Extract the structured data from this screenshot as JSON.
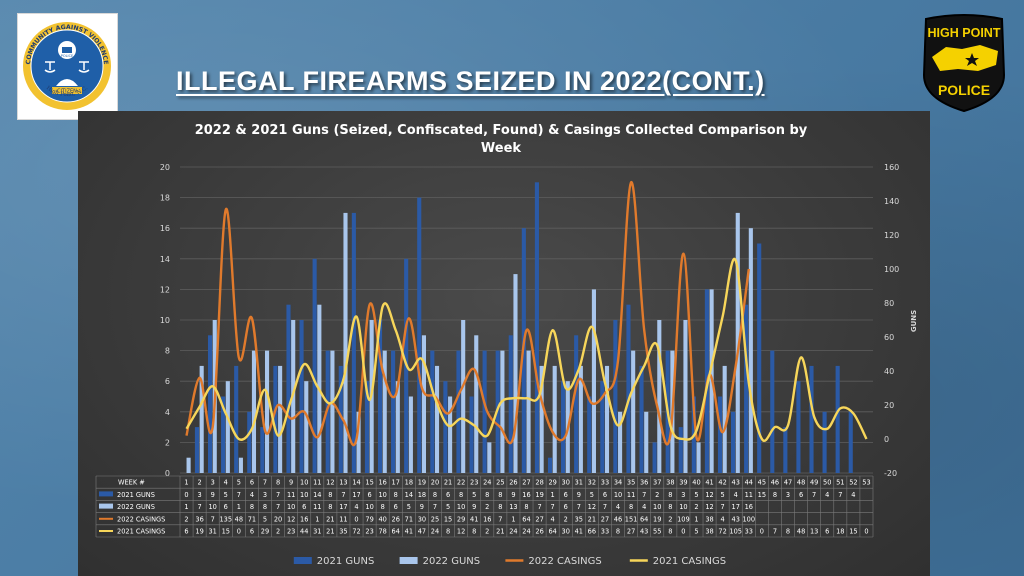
{
  "page": {
    "title": "ILLEGAL FIREARMS SEIZED IN 2022(CONT.)"
  },
  "logos": {
    "left": {
      "ring_top": "COMMUNITY AGAINST VIOLENCE",
      "ring_bottom": "High Point, N.C.",
      "ribbon": "CITIZEN",
      "center": "POLICE",
      "colors": {
        "ring": "#f2c230",
        "inner": "#1f5fa8"
      }
    },
    "right": {
      "line1": "HIGH POINT",
      "line2": "POLICE",
      "colors": {
        "badge": "#111111",
        "star_field": "#f5d100",
        "text": "#f5d100"
      }
    }
  },
  "chart_data": {
    "type": "bar",
    "title": "2022 & 2021 Guns (Seized, Confiscated, Found) & Casings Collected Comparison by Week",
    "ylabel_right": "GUNS",
    "ylim_left": [
      0,
      20
    ],
    "yticks_left": [
      0,
      2,
      4,
      6,
      8,
      10,
      12,
      14,
      16,
      18,
      20
    ],
    "ylim_right": [
      -20,
      160
    ],
    "yticks_right": [
      -20,
      0,
      20,
      40,
      60,
      80,
      100,
      120,
      140,
      160
    ],
    "grid": true,
    "legend_position": "bottom",
    "table_header_label": "WEEK #",
    "categories": [
      "1",
      "2",
      "3",
      "4",
      "5",
      "6",
      "7",
      "8",
      "9",
      "10",
      "11",
      "12",
      "13",
      "14",
      "15",
      "16",
      "17",
      "18",
      "19",
      "20",
      "21",
      "22",
      "23",
      "24",
      "25",
      "26",
      "27",
      "28",
      "29",
      "30",
      "31",
      "32",
      "33",
      "34",
      "35",
      "36",
      "37",
      "38",
      "39",
      "40",
      "41",
      "42",
      "43",
      "44",
      "45",
      "46",
      "47",
      "48",
      "49",
      "50",
      "51",
      "52",
      "53"
    ],
    "series": [
      {
        "name": "2021 GUNS",
        "type": "bar",
        "axis": "left",
        "color": "#2b5aa6",
        "values": [
          0,
          3,
          9,
          5,
          7,
          4,
          3,
          7,
          11,
          10,
          14,
          8,
          7,
          17,
          6,
          10,
          8,
          14,
          18,
          8,
          6,
          8,
          5,
          8,
          8,
          9,
          16,
          19,
          1,
          6,
          9,
          5,
          6,
          10,
          11,
          7,
          2,
          8,
          3,
          5,
          12,
          5,
          4,
          11,
          15,
          8,
          3,
          6,
          7,
          4,
          7,
          4,
          null
        ]
      },
      {
        "name": "2022 GUNS",
        "type": "bar",
        "axis": "left",
        "color": "#a9c6ec",
        "values": [
          1,
          7,
          10,
          6,
          1,
          8,
          8,
          7,
          10,
          6,
          11,
          8,
          17,
          4,
          10,
          8,
          6,
          5,
          9,
          7,
          5,
          10,
          9,
          2,
          8,
          13,
          8,
          7,
          7,
          6,
          7,
          12,
          7,
          4,
          8,
          4,
          10,
          8,
          10,
          2,
          12,
          7,
          17,
          16,
          null,
          null,
          null,
          null,
          null,
          null,
          null,
          null,
          null
        ]
      },
      {
        "name": "2022 CASINGS",
        "type": "line",
        "axis": "right",
        "color": "#e07a2c",
        "values": [
          2,
          36,
          7,
          135,
          48,
          71,
          5,
          20,
          12,
          16,
          1,
          21,
          11,
          0,
          79,
          40,
          26,
          71,
          30,
          25,
          15,
          29,
          41,
          16,
          7,
          1,
          64,
          27,
          4,
          2,
          35,
          21,
          27,
          46,
          151,
          64,
          19,
          2,
          109,
          1,
          38,
          4,
          43,
          100,
          null,
          null,
          null,
          null,
          null,
          null,
          null,
          null,
          null
        ]
      },
      {
        "name": "2021 CASINGS",
        "type": "line",
        "axis": "right",
        "color": "#f7d65a",
        "values": [
          6,
          19,
          31,
          15,
          0,
          6,
          29,
          2,
          23,
          44,
          31,
          21,
          35,
          72,
          23,
          78,
          64,
          41,
          47,
          24,
          8,
          12,
          8,
          2,
          21,
          24,
          24,
          26,
          64,
          30,
          41,
          66,
          33,
          8,
          27,
          43,
          55,
          8,
          0,
          5,
          38,
          72,
          105,
          33,
          0,
          7,
          8,
          48,
          13,
          6,
          18,
          15,
          0
        ]
      }
    ],
    "table_rows": [
      {
        "label": "2021 GUNS",
        "cells": [
          "0",
          "3",
          "9",
          "5",
          "7",
          "4",
          "3",
          "7",
          "11",
          "10",
          "14",
          "8",
          "7",
          "17",
          "6",
          "10",
          "8",
          "14",
          "18",
          "8",
          "6",
          "8",
          "5",
          "8",
          "8",
          "9",
          "16",
          "19",
          "1",
          "6",
          "9",
          "5",
          "6",
          "10",
          "11",
          "7",
          "2",
          "8",
          "3",
          "5",
          "12",
          "5",
          "4",
          "11",
          "15",
          "8",
          "3",
          "6",
          "7",
          "4",
          "7",
          "4",
          ""
        ]
      },
      {
        "label": "2022 GUNS",
        "cells": [
          "1",
          "7",
          "10",
          "6",
          "1",
          "8",
          "8",
          "7",
          "10",
          "6",
          "11",
          "8",
          "17",
          "4",
          "10",
          "8",
          "6",
          "5",
          "9",
          "7",
          "5",
          "10",
          "9",
          "2",
          "8",
          "13",
          "8",
          "7",
          "7",
          "6",
          "7",
          "12",
          "7",
          "4",
          "8",
          "4",
          "10",
          "8",
          "10",
          "2",
          "12",
          "7",
          "17",
          "16",
          "",
          "",
          "",
          "",
          "",
          "",
          "",
          "",
          ""
        ]
      },
      {
        "label": "2022 CASINGS",
        "cells": [
          "2",
          "36",
          "7",
          "135",
          "48",
          "71",
          "5",
          "20",
          "12",
          "16",
          "1",
          "21",
          "11",
          "0",
          "79",
          "40",
          "26",
          "71",
          "30",
          "25",
          "15",
          "29",
          "41",
          "16",
          "7",
          "1",
          "64",
          "27",
          "4",
          "2",
          "35",
          "21",
          "27",
          "46",
          "151",
          "64",
          "19",
          "2",
          "109",
          "1",
          "38",
          "4",
          "43",
          "100",
          "",
          "",
          "",
          "",
          "",
          "",
          "",
          "",
          ""
        ]
      },
      {
        "label": "2021 CASINGS",
        "cells": [
          "6",
          "19",
          "31",
          "15",
          "0",
          "6",
          "29",
          "2",
          "23",
          "44",
          "31",
          "21",
          "35",
          "72",
          "23",
          "78",
          "64",
          "41",
          "47",
          "24",
          "8",
          "12",
          "8",
          "2",
          "21",
          "24",
          "24",
          "26",
          "64",
          "30",
          "41",
          "66",
          "33",
          "8",
          "27",
          "43",
          "55",
          "8",
          "0",
          "5",
          "38",
          "72",
          "105",
          "33",
          "0",
          "7",
          "8",
          "48",
          "13",
          "6",
          "18",
          "15",
          "0"
        ]
      }
    ]
  }
}
